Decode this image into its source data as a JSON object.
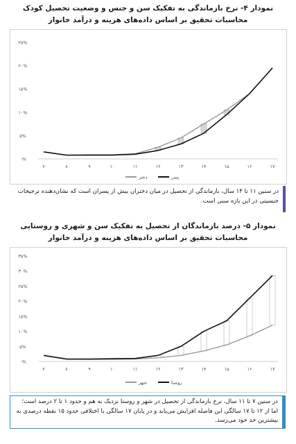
{
  "charts": [
    {
      "title_line1": "نمودار ۴- نرخ بازماندگی به تفکیک سن و جنس و وضعیت تحصیل کودک",
      "title_line2": "محاسبات تحقیق بر اساس داده‌های هزینه و درآمد خانوار",
      "note": "در سنین ۱۱ تا ۱۴ سال، بازماندگی از تحصیل در میان دختران بیش از پسران است که نشان‌دهنده ترجیحات جنسیتی در این بازه سنی است."
    },
    {
      "title_line1": "نمودار ۵- درصد بازماندگان از تحصیل به تفکیک سن و شهری و روستایی",
      "title_line2": "محاسبات تحقیق بر اساس داده‌های هزینه و درآمد خانوار",
      "note": "در سنین ۷ تا ۱۱ سال، نرخ بازماندگی از تحصیل در شهر و روستا نزدیک به هم و حدود ۱ تا ۲ درصد است؛ اما از ۱۲ تا ۱۷ سالگی این فاصله افزایش می‌یابد و در پایان ۱۷ سالگی با اختلافی حدود ۱۵ نقطه درصدی به بیشترین حد خود می‌رسد."
    }
  ],
  "chart_data": [
    {
      "type": "line",
      "x": [
        "۷",
        "۸",
        "۹",
        "۱۰",
        "۱۱",
        "۱۲",
        "۱۳",
        "۱۴",
        "۱۵",
        "۱۶",
        "۱۷"
      ],
      "y_ticks": [
        "۰%",
        "۵%",
        "۱۰%",
        "۱۵%",
        "۲۰%",
        "۲۵%"
      ],
      "ylim": [
        0,
        25
      ],
      "series": [
        {
          "name": "دختر",
          "color": "#9a9a9a",
          "values": [
            1.5,
            0.8,
            0.9,
            0.9,
            1.1,
            2.5,
            4.5,
            7.5,
            10.5,
            14.0,
            19.5
          ]
        },
        {
          "name": "پسر",
          "color": "#111111",
          "values": [
            1.5,
            0.8,
            0.8,
            0.8,
            1.0,
            1.8,
            3.2,
            5.5,
            9.5,
            14.0,
            19.5
          ]
        }
      ],
      "legend": "bottom-left",
      "grid": false
    },
    {
      "type": "line",
      "x": [
        "۷",
        "۸",
        "۹",
        "۱۰",
        "۱۱",
        "۱۲",
        "۱۳",
        "۱۴",
        "۱۵",
        "۱۶",
        "۱۷"
      ],
      "y_ticks": [
        "۰%",
        "۵%",
        "۱۰%",
        "۱۵%",
        "۲۰%",
        "۲۵%",
        "۳۰%",
        "۳۵%"
      ],
      "ylim": [
        0,
        35
      ],
      "series": [
        {
          "name": "شهر",
          "color": "#9a9a9a",
          "values": [
            2.0,
            0.8,
            0.7,
            0.7,
            0.8,
            1.2,
            2.0,
            3.5,
            5.5,
            8.5,
            12.0
          ]
        },
        {
          "name": "روستا",
          "color": "#111111",
          "values": [
            2.0,
            0.8,
            0.8,
            0.9,
            1.0,
            2.0,
            5.0,
            10.0,
            13.5,
            21.0,
            28.5
          ]
        }
      ],
      "legend": "bottom-left",
      "grid": false
    }
  ]
}
